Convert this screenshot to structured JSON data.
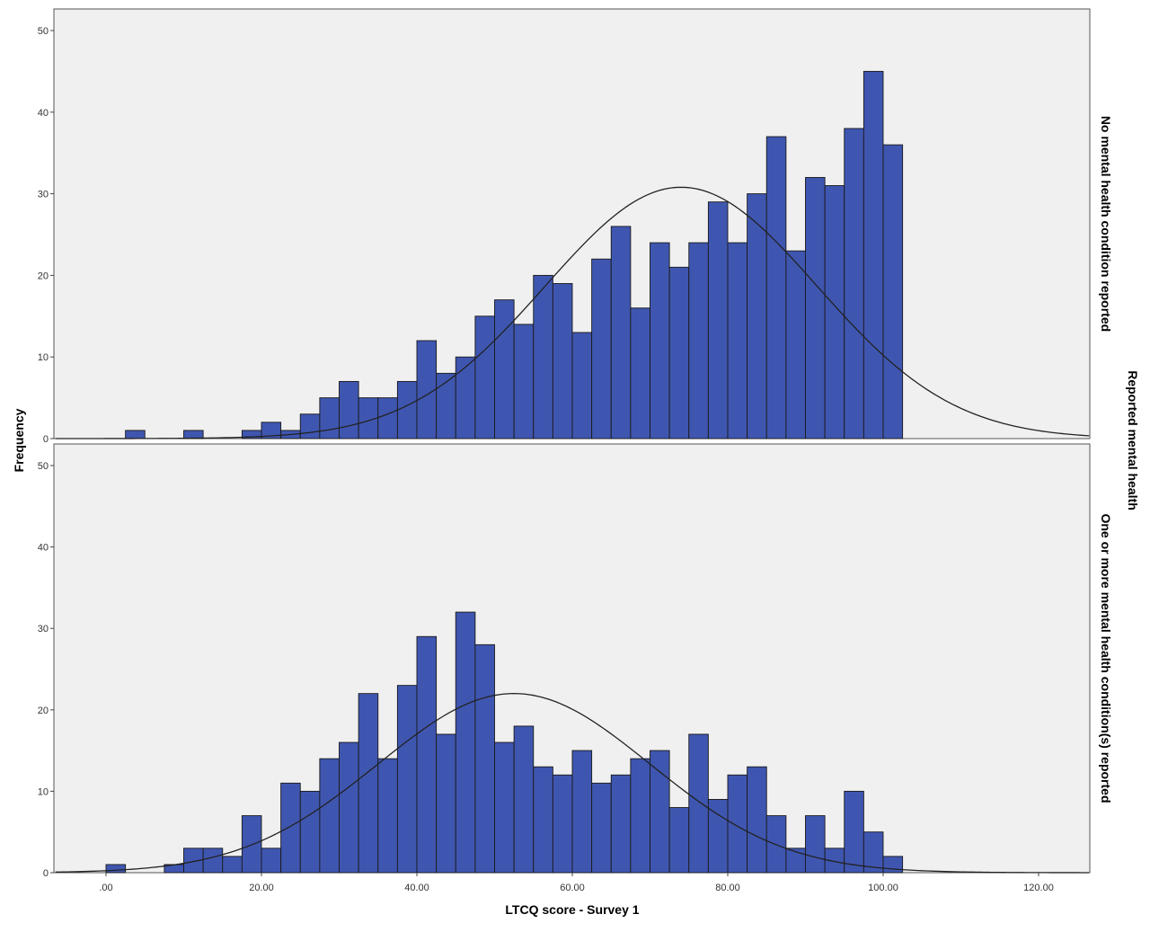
{
  "chart_data": {
    "type": "bar",
    "title": "",
    "xlabel": "LTCQ score - Survey 1",
    "ylabel": "Frequency",
    "facet_label": "Reported mental health",
    "xlim": [
      -6.5,
      126.5
    ],
    "ylim": [
      0,
      52
    ],
    "x_ticks": [
      0,
      20,
      40,
      60,
      80,
      100,
      120
    ],
    "x_tick_labels": [
      ".00",
      "20.00",
      "40.00",
      "60.00",
      "80.00",
      "100.00",
      "120.00"
    ],
    "y_ticks": [
      0,
      10,
      20,
      30,
      40,
      50
    ],
    "y_tick_labels": [
      "0",
      "10",
      "20",
      "30",
      "40",
      "50"
    ],
    "bin_width": 2.5,
    "bar_color": "#3f56b0",
    "background_color": "#f0f0f0",
    "curve_color": "#222222",
    "panels": [
      {
        "name": "No mental health condition reported",
        "bin_starts": [
          2.5,
          10,
          17.5,
          20,
          22.5,
          25,
          27.5,
          30,
          32.5,
          35,
          37.5,
          40,
          42.5,
          45,
          47.5,
          50,
          52.5,
          55,
          57.5,
          60,
          62.5,
          65,
          67.5,
          70,
          72.5,
          75,
          77.5,
          80,
          82.5,
          85,
          87.5,
          90,
          92.5,
          95,
          97.5,
          100
        ],
        "values": [
          1,
          1,
          1,
          2,
          1,
          3,
          5,
          7,
          5,
          5,
          7,
          12,
          8,
          10,
          15,
          17,
          14,
          20,
          19,
          13,
          22,
          26,
          16,
          24,
          21,
          24,
          29,
          24,
          30,
          37,
          23,
          32,
          31,
          38,
          45,
          36
        ],
        "normal_curve": {
          "mean": 74,
          "sd": 17.5,
          "peak": 30.8
        }
      },
      {
        "name": "One or more mental health condition(s) reported",
        "bin_starts": [
          0,
          7.5,
          10,
          12.5,
          15,
          17.5,
          20,
          22.5,
          25,
          27.5,
          30,
          32.5,
          35,
          37.5,
          40,
          42.5,
          45,
          47.5,
          50,
          52.5,
          55,
          57.5,
          60,
          62.5,
          65,
          67.5,
          70,
          72.5,
          75,
          77.5,
          80,
          82.5,
          85,
          87.5,
          90,
          92.5,
          95,
          97.5,
          100
        ],
        "values": [
          1,
          1,
          3,
          3,
          2,
          7,
          3,
          11,
          10,
          14,
          16,
          22,
          14,
          23,
          29,
          17,
          32,
          28,
          16,
          18,
          13,
          12,
          15,
          11,
          12,
          14,
          15,
          8,
          17,
          9,
          12,
          13,
          7,
          3,
          7,
          3,
          10,
          5,
          2
        ],
        "normal_curve": {
          "mean": 52.5,
          "sd": 17.5,
          "peak": 22
        }
      }
    ]
  }
}
